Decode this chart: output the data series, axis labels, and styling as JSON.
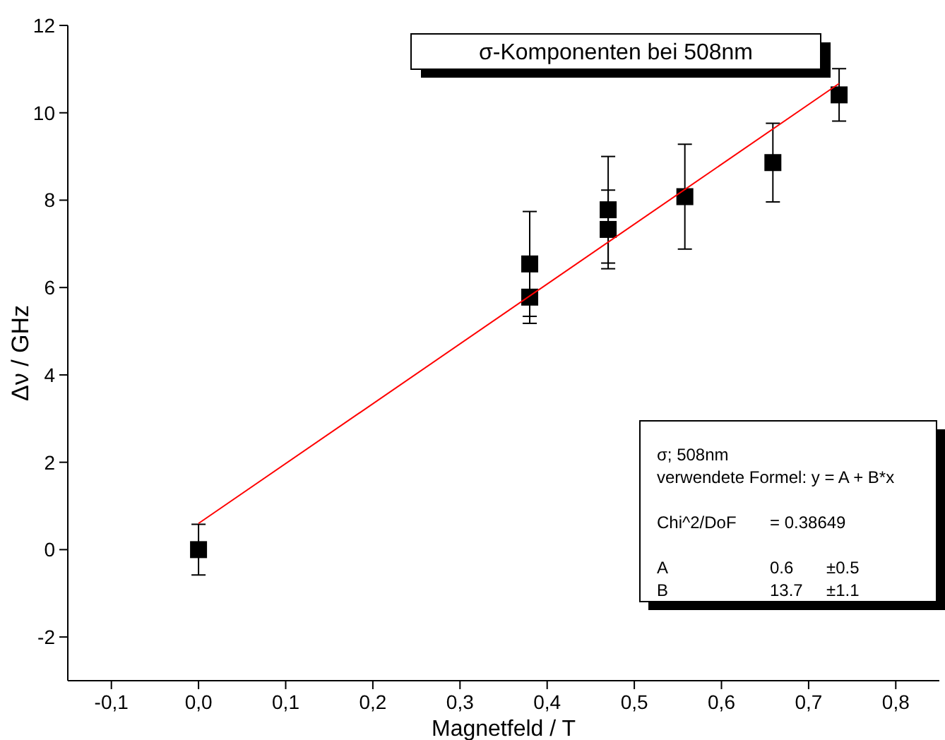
{
  "chart_data": {
    "type": "scatter",
    "title": "σ-Komponenten bei 508nm",
    "xlabel": "Magnetfeld / T",
    "ylabel": "Δν / GHz",
    "xlim": [
      -0.15,
      0.85
    ],
    "xticks": [
      {
        "value": -0.1,
        "label": "-0,1"
      },
      {
        "value": 0,
        "label": "0,0"
      },
      {
        "value": 0.1,
        "label": "0,1"
      },
      {
        "value": 0.2,
        "label": "0,2"
      },
      {
        "value": 0.3,
        "label": "0,3"
      },
      {
        "value": 0.4,
        "label": "0,4"
      },
      {
        "value": 0.5,
        "label": "0,5"
      },
      {
        "value": 0.6,
        "label": "0,6"
      },
      {
        "value": 0.7,
        "label": "0,7"
      },
      {
        "value": 0.8,
        "label": "0,8"
      }
    ],
    "ylim": [
      -3,
      12
    ],
    "yticks": [
      -2,
      0,
      2,
      4,
      6,
      8,
      10,
      12
    ],
    "grid": false,
    "marker": "square",
    "series": [
      {
        "color": "#000000",
        "x": [
          0,
          0.38,
          0.38,
          0.47,
          0.47,
          0.558,
          0.659,
          0.735
        ],
        "values": [
          0,
          6.54,
          5.78,
          7.78,
          7.33,
          8.08,
          8.86,
          10.41
        ],
        "errors": [
          0.58,
          1.2,
          0.6,
          1.22,
          0.9,
          1.2,
          0.9,
          0.6
        ],
        "xerrors": [
          0.005,
          0.005,
          0.005,
          0.005,
          0.005,
          0.005,
          0.005,
          0.005
        ]
      },
      {
        "type": "line",
        "color": "#ff0000",
        "x": [
          0,
          0.735
        ],
        "values": [
          0.6,
          10.67
        ],
        "marker": "none",
        "line_style": "solid"
      }
    ],
    "annotations": [
      "σ; 508nm",
      "verwendete Formel: y = A + B*x",
      "Chi^2/DoF\t= 0.38649",
      "A\t0.6\t±0.5",
      "B\t13.7\t±1.1"
    ]
  }
}
